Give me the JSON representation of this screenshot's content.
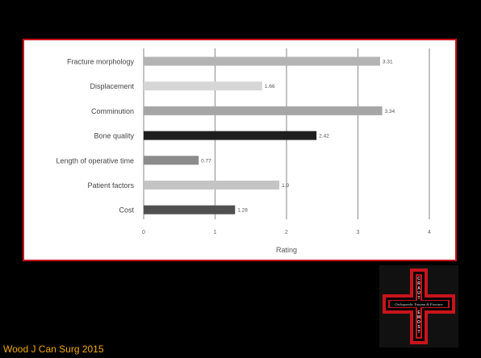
{
  "chart_data": {
    "type": "bar",
    "orientation": "horizontal",
    "categories": [
      "Fracture morphology",
      "Displacement",
      "Comminution",
      "Bone quality",
      "Length of operative time",
      "Patient factors",
      "Cost"
    ],
    "values": [
      3.31,
      1.66,
      3.34,
      2.42,
      0.77,
      1.9,
      1.28
    ],
    "value_labels": [
      "3.31",
      "1.66",
      "3.34",
      "2.42",
      "0.77",
      "1.9",
      "1.28"
    ],
    "bar_colors": [
      "#b3b3b3",
      "#d6d6d6",
      "#a6a6a6",
      "#1e1e1e",
      "#8c8c8c",
      "#c4c4c4",
      "#505050"
    ],
    "xlabel": "Rating",
    "ylabel": "",
    "xlim": [
      0,
      4
    ],
    "xticks": [
      0,
      1,
      2,
      3,
      4
    ],
    "grid": "vertical",
    "legend": "none"
  },
  "citation": "Wood J Can Surg 2015",
  "logo": {
    "vertical_text_top": "CRAUT",
    "vertical_text_bottom": "EMOST",
    "banner_text": "Orthopaedic Trauma & Fracture",
    "border_color": "#c8141c"
  },
  "colors": {
    "background": "#000000",
    "panel": "#ffffff",
    "panel_border": "#c8141c",
    "citation": "#f2a900",
    "grid": "#9a9a9a",
    "label_text": "#444444"
  }
}
